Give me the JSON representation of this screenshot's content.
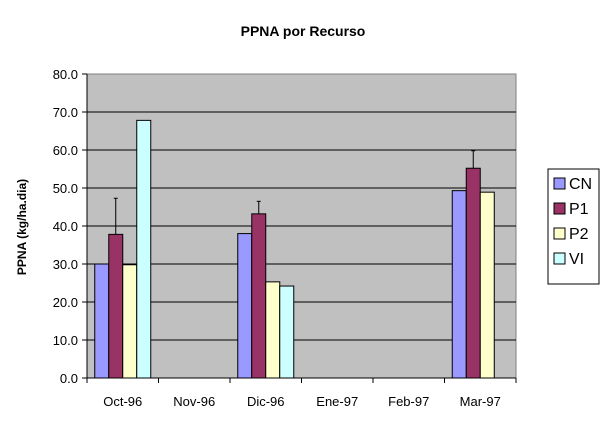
{
  "chart_data": {
    "type": "bar",
    "title": "PPNA por Recurso",
    "xlabel": "",
    "ylabel": "PPNA (kg/ha.dia)",
    "ylim": [
      0,
      80
    ],
    "yticks": [
      "0.0",
      "10.0",
      "20.0",
      "30.0",
      "40.0",
      "50.0",
      "60.0",
      "70.0",
      "80.0"
    ],
    "categories": [
      "Oct-96",
      "Nov-96",
      "Dic-96",
      "Ene-97",
      "Feb-97",
      "Mar-97"
    ],
    "series": [
      {
        "name": "CN",
        "color": "#9999ff",
        "values": [
          30.0,
          null,
          38.0,
          null,
          null,
          49.3
        ]
      },
      {
        "name": "P1",
        "color": "#993366",
        "values": [
          37.8,
          null,
          43.2,
          null,
          null,
          55.2
        ],
        "error_upper": [
          47.3,
          null,
          46.5,
          null,
          null,
          59.8
        ]
      },
      {
        "name": "P2",
        "color": "#ffffcc",
        "values": [
          29.8,
          null,
          25.3,
          null,
          null,
          48.9
        ]
      },
      {
        "name": "VI",
        "color": "#ccffff",
        "values": [
          67.8,
          null,
          24.2,
          null,
          null,
          null
        ]
      }
    ],
    "grid": true,
    "plot_background": "#c0c0c0",
    "legend_position": "right"
  }
}
